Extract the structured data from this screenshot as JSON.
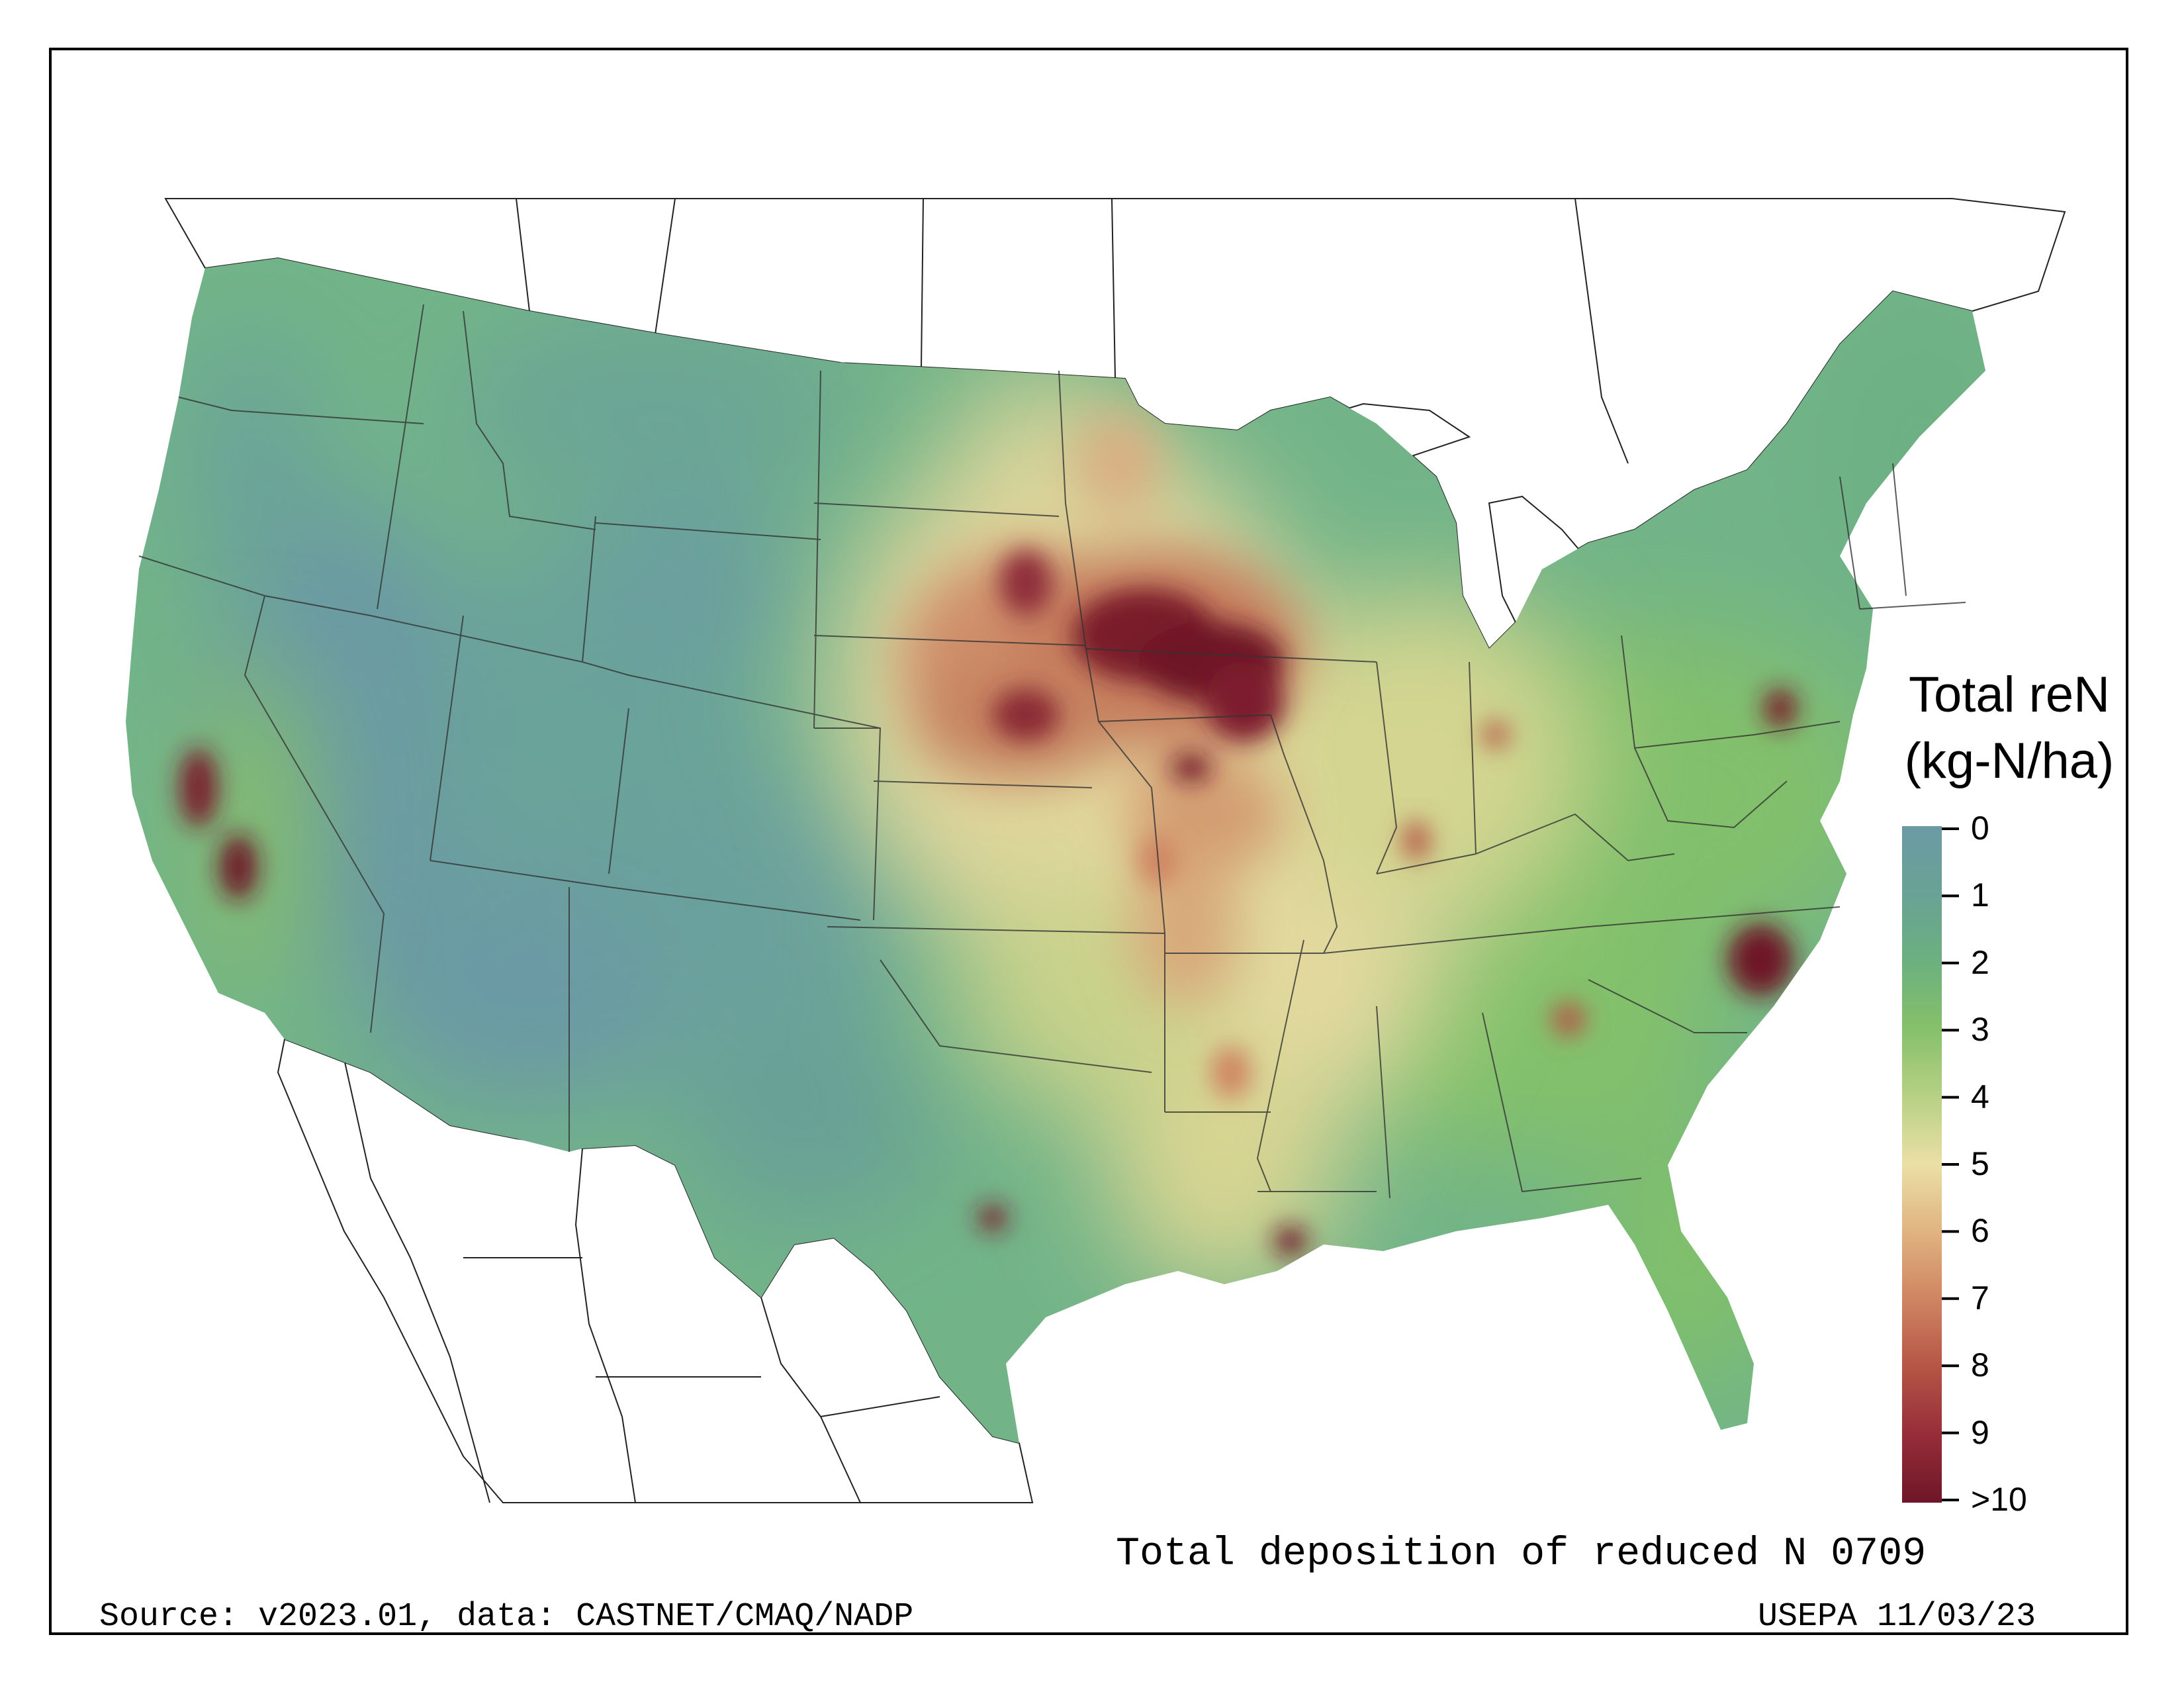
{
  "title": "Total deposition of reduced N 0709",
  "source": "Source: v2023.01, data: CASTNET/CMAQ/NADP",
  "agency": "USEPA 11/03/23",
  "legend": {
    "title_line1": "Total reN",
    "title_line2": "(kg-N/ha)",
    "labels": [
      "0",
      "1",
      "2",
      "3",
      "4",
      "5",
      "6",
      "7",
      "8",
      "9",
      ">10"
    ],
    "colors": [
      "#6b9aa4",
      "#69a295",
      "#6cb07f",
      "#86c06a",
      "#b7d184",
      "#ebdfa6",
      "#e0b37f",
      "#cf8462",
      "#b55546",
      "#962d39",
      "#6e1628"
    ]
  },
  "map": {
    "region": "Contiguous United States",
    "ocean_color": "#ffffff",
    "land_outline_color": "#222222",
    "background_fill": "#72b488"
  }
}
